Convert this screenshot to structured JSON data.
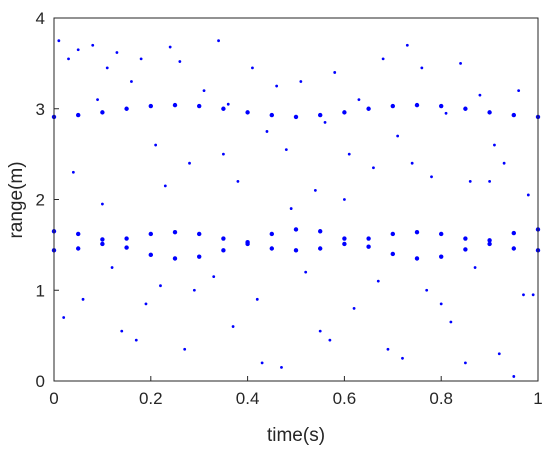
{
  "chart_data": {
    "type": "scatter",
    "title": "",
    "xlabel": "time(s)",
    "ylabel": "range(m)",
    "xlim": [
      0,
      1
    ],
    "ylim": [
      0,
      4
    ],
    "xticks": [
      0,
      0.2,
      0.4,
      0.6,
      0.8,
      1
    ],
    "yticks": [
      0,
      1,
      2,
      3,
      4
    ],
    "xtick_labels": [
      "0",
      "0.2",
      "0.4",
      "0.6",
      "0.8",
      "1"
    ],
    "ytick_labels": [
      "0",
      "1",
      "2",
      "3",
      "4"
    ],
    "grid": false,
    "legend": "none",
    "marker_color": "#0000ff",
    "series": [
      {
        "x": [
          0,
          0.05,
          0.1,
          0.15,
          0.2,
          0.25,
          0.3,
          0.35,
          0.4,
          0.45,
          0.5,
          0.55,
          0.6,
          0.65,
          0.7,
          0.75,
          0.8,
          0.85,
          0.9,
          0.95,
          1
        ],
        "values": [
          2.91,
          2.93,
          2.96,
          3.0,
          3.03,
          3.04,
          3.03,
          3.0,
          2.96,
          2.93,
          2.91,
          2.93,
          2.96,
          3.0,
          3.03,
          3.04,
          3.03,
          3.0,
          2.96,
          2.93,
          2.91
        ]
      },
      {
        "x": [
          0,
          0.05,
          0.1,
          0.15,
          0.2,
          0.25,
          0.3,
          0.35,
          0.4,
          0.45,
          0.5,
          0.55,
          0.6,
          0.65,
          0.7,
          0.75,
          0.8,
          0.85,
          0.9,
          0.95,
          1
        ],
        "values": [
          1.65,
          1.62,
          1.56,
          1.47,
          1.39,
          1.35,
          1.37,
          1.44,
          1.53,
          1.62,
          1.67,
          1.65,
          1.57,
          1.48,
          1.4,
          1.35,
          1.37,
          1.45,
          1.55,
          1.63,
          1.67
        ]
      },
      {
        "x": [
          0,
          0.05,
          0.1,
          0.15,
          0.2,
          0.25,
          0.3,
          0.35,
          0.4,
          0.45,
          0.5,
          0.55,
          0.6,
          0.65,
          0.7,
          0.75,
          0.8,
          0.85,
          0.9,
          0.95,
          1
        ],
        "values": [
          1.44,
          1.46,
          1.51,
          1.57,
          1.62,
          1.64,
          1.62,
          1.57,
          1.51,
          1.46,
          1.44,
          1.46,
          1.51,
          1.57,
          1.62,
          1.64,
          1.62,
          1.57,
          1.51,
          1.46,
          1.44
        ]
      },
      {
        "x": [
          0.01,
          0.03,
          0.05,
          0.08,
          0.09,
          0.11,
          0.13,
          0.16,
          0.18,
          0.21,
          0.24,
          0.26,
          0.28,
          0.31,
          0.34,
          0.36,
          0.38,
          0.41,
          0.44,
          0.46,
          0.48,
          0.51,
          0.54,
          0.56,
          0.58,
          0.61,
          0.63,
          0.66,
          0.68,
          0.71,
          0.73,
          0.76,
          0.78,
          0.81,
          0.84,
          0.86,
          0.88,
          0.91,
          0.93,
          0.96,
          0.98,
          0.02,
          0.06,
          0.12,
          0.14,
          0.19,
          0.22,
          0.27,
          0.33,
          0.37,
          0.42,
          0.47,
          0.52,
          0.57,
          0.62,
          0.67,
          0.72,
          0.77,
          0.82,
          0.87,
          0.92,
          0.97,
          0.04,
          0.1,
          0.17,
          0.23,
          0.29,
          0.35,
          0.43,
          0.49,
          0.55,
          0.6,
          0.69,
          0.74,
          0.8,
          0.85,
          0.9,
          0.95,
          0.99
        ],
        "values": [
          3.75,
          3.55,
          3.65,
          3.7,
          3.1,
          3.45,
          3.62,
          3.3,
          3.55,
          2.6,
          3.68,
          3.52,
          2.4,
          3.2,
          3.75,
          3.05,
          2.2,
          3.45,
          2.75,
          3.25,
          2.55,
          3.3,
          2.1,
          2.85,
          3.4,
          2.5,
          3.1,
          2.35,
          3.55,
          2.7,
          3.7,
          3.45,
          2.25,
          2.95,
          3.5,
          2.2,
          3.15,
          2.6,
          2.4,
          3.2,
          2.05,
          0.7,
          0.9,
          1.25,
          0.55,
          0.85,
          1.05,
          0.35,
          1.15,
          0.6,
          0.9,
          0.15,
          1.2,
          0.45,
          0.8,
          1.1,
          0.25,
          1.0,
          0.65,
          1.25,
          0.3,
          0.95,
          2.3,
          1.95,
          0.45,
          2.15,
          1.0,
          2.5,
          0.2,
          1.9,
          0.55,
          2.0,
          0.35,
          2.4,
          0.85,
          0.2,
          2.2,
          0.05,
          0.95
        ]
      }
    ]
  }
}
